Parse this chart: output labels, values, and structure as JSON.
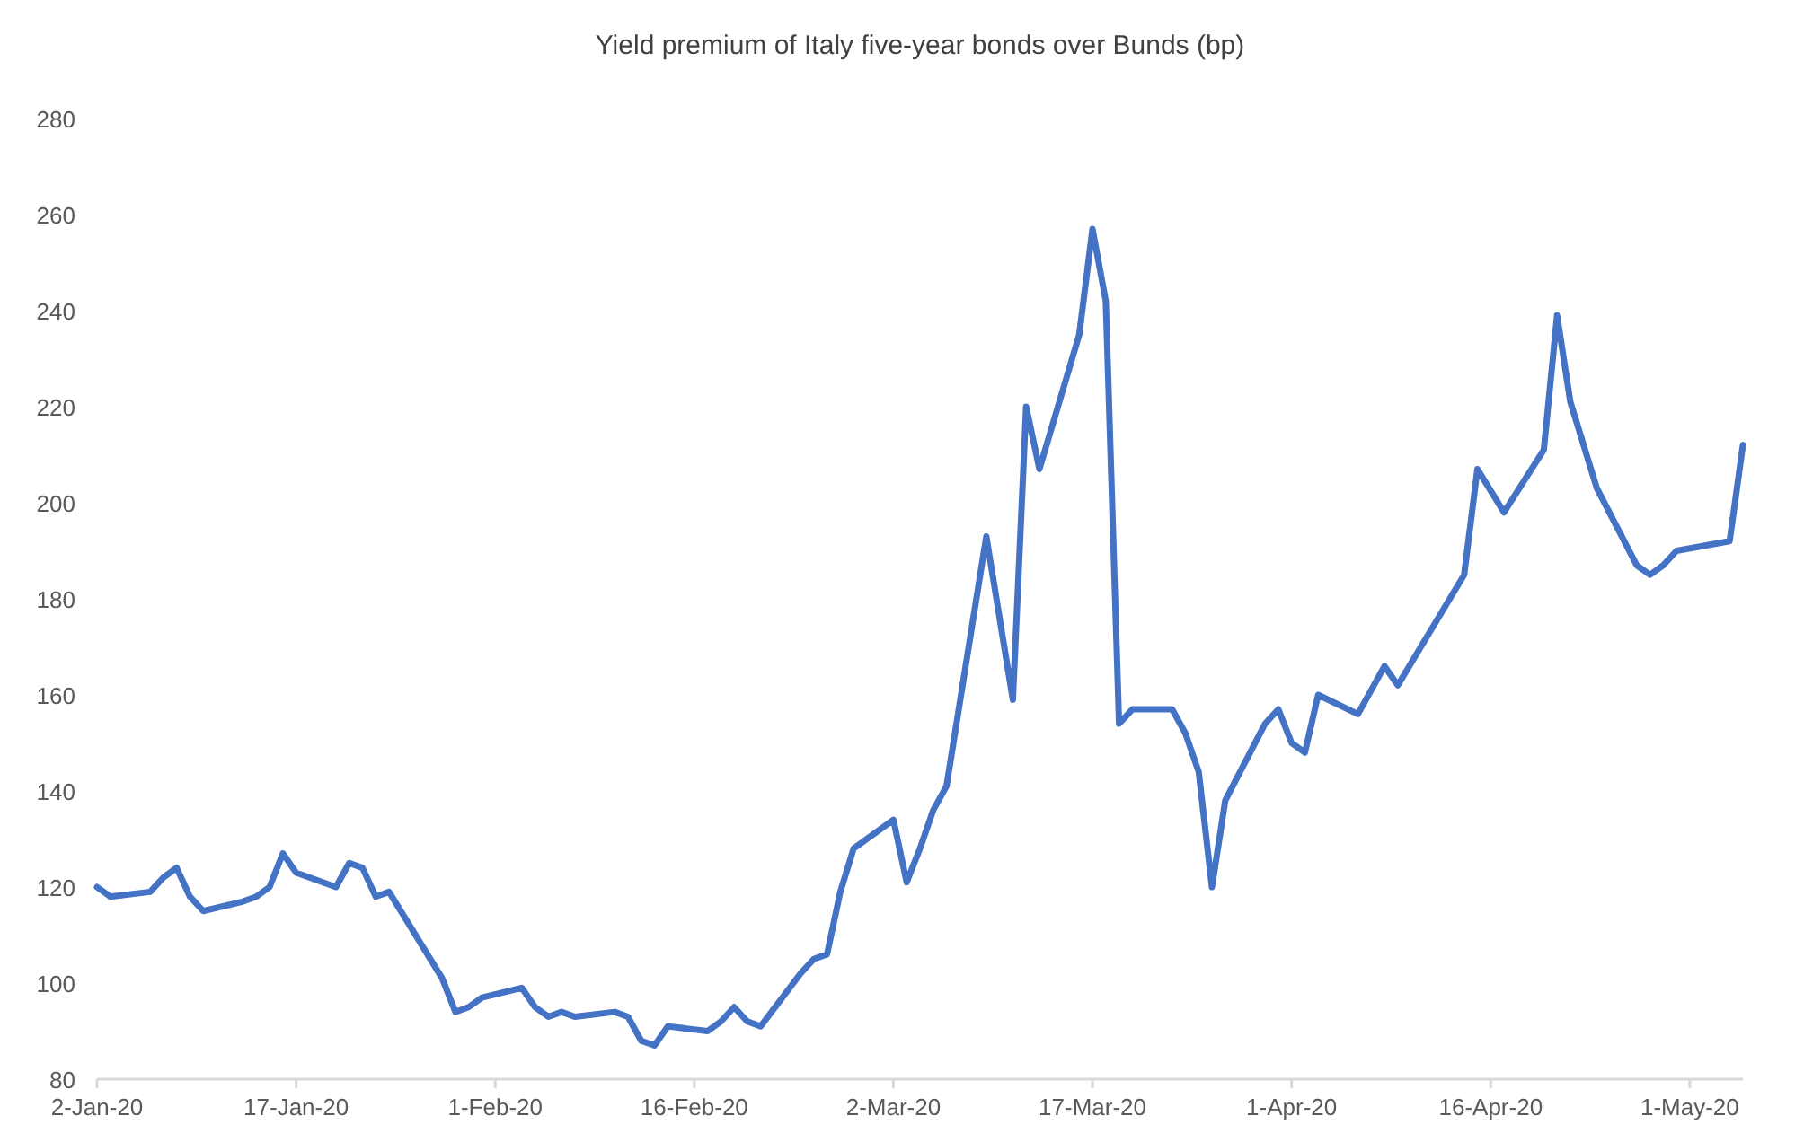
{
  "chart_data": {
    "type": "line",
    "title": "Yield premium of Italy five-year bonds over Bunds (bp)",
    "x": [
      "2020-01-02",
      "2020-01-03",
      "2020-01-06",
      "2020-01-07",
      "2020-01-08",
      "2020-01-09",
      "2020-01-10",
      "2020-01-13",
      "2020-01-14",
      "2020-01-15",
      "2020-01-16",
      "2020-01-17",
      "2020-01-20",
      "2020-01-21",
      "2020-01-22",
      "2020-01-23",
      "2020-01-24",
      "2020-01-28",
      "2020-01-29",
      "2020-01-30",
      "2020-01-31",
      "2020-02-03",
      "2020-02-04",
      "2020-02-05",
      "2020-02-06",
      "2020-02-07",
      "2020-02-10",
      "2020-02-11",
      "2020-02-12",
      "2020-02-13",
      "2020-02-14",
      "2020-02-17",
      "2020-02-18",
      "2020-02-19",
      "2020-02-20",
      "2020-02-21",
      "2020-02-24",
      "2020-02-25",
      "2020-02-26",
      "2020-02-27",
      "2020-02-28",
      "2020-03-02",
      "2020-03-03",
      "2020-03-04",
      "2020-03-05",
      "2020-03-06",
      "2020-03-09",
      "2020-03-11",
      "2020-03-12",
      "2020-03-13",
      "2020-03-16",
      "2020-03-17",
      "2020-03-18",
      "2020-03-19",
      "2020-03-20",
      "2020-03-23",
      "2020-03-24",
      "2020-03-25",
      "2020-03-26",
      "2020-03-27",
      "2020-03-30",
      "2020-03-31",
      "2020-04-01",
      "2020-04-02",
      "2020-04-03",
      "2020-04-06",
      "2020-04-08",
      "2020-04-09",
      "2020-04-14",
      "2020-04-15",
      "2020-04-17",
      "2020-04-20",
      "2020-04-21",
      "2020-04-22",
      "2020-04-24",
      "2020-04-27",
      "2020-04-28",
      "2020-04-29",
      "2020-04-30",
      "2020-05-04",
      "2020-05-05"
    ],
    "series": [
      {
        "color": "#4472c4",
        "values": [
          120,
          118,
          119,
          122,
          124,
          118,
          115,
          117,
          118,
          120,
          127,
          123,
          120,
          125,
          124,
          118,
          119,
          101,
          94,
          95,
          97,
          99,
          95,
          93,
          94,
          93,
          94,
          93,
          88,
          87,
          91,
          90,
          92,
          95,
          92,
          91,
          102,
          105,
          106,
          119,
          128,
          134,
          121,
          128,
          136,
          141,
          193,
          159,
          220,
          207,
          235,
          257,
          242,
          154,
          157,
          157,
          152,
          144,
          120,
          138,
          154,
          157,
          150,
          148,
          160,
          156,
          166,
          162,
          185,
          207,
          198,
          211,
          239,
          221,
          203,
          187,
          185,
          187,
          190,
          192,
          212
        ]
      }
    ],
    "xlim": [
      "2020-01-02",
      "2020-05-05"
    ],
    "xticks": [
      {
        "value": "2020-01-02",
        "label": "2-Jan-20"
      },
      {
        "value": "2020-01-17",
        "label": "17-Jan-20"
      },
      {
        "value": "2020-02-01",
        "label": "1-Feb-20"
      },
      {
        "value": "2020-02-16",
        "label": "16-Feb-20"
      },
      {
        "value": "2020-03-02",
        "label": "2-Mar-20"
      },
      {
        "value": "2020-03-17",
        "label": "17-Mar-20"
      },
      {
        "value": "2020-04-01",
        "label": "1-Apr-20"
      },
      {
        "value": "2020-04-16",
        "label": "16-Apr-20"
      },
      {
        "value": "2020-05-01",
        "label": "1-May-20"
      }
    ],
    "ylim": [
      80,
      280
    ],
    "yticks": [
      80,
      100,
      120,
      140,
      160,
      180,
      200,
      220,
      240,
      260,
      280
    ],
    "grid": false,
    "marker": "none",
    "line_style": "solid"
  }
}
